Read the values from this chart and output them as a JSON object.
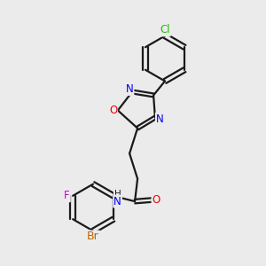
{
  "bg_color": "#ebebeb",
  "bond_color": "#1a1a1a",
  "bond_width": 1.6,
  "atom_colors": {
    "N": "#0000ee",
    "O": "#ee0000",
    "Cl": "#22bb00",
    "Br": "#bb6600",
    "F": "#cc00cc",
    "C": "#1a1a1a"
  }
}
